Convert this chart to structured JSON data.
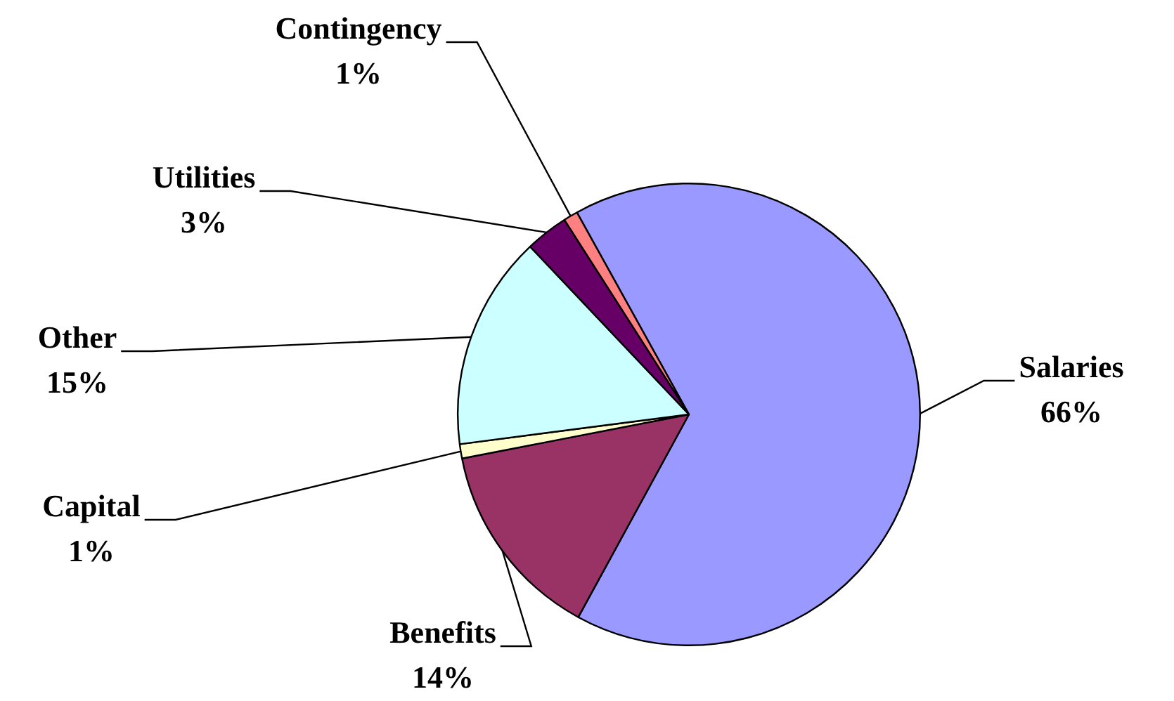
{
  "chart_data": {
    "type": "pie",
    "categories": [
      "Salaries",
      "Benefits",
      "Capital",
      "Other",
      "Utilities",
      "Contingency"
    ],
    "values": [
      66,
      14,
      1,
      15,
      3,
      1
    ],
    "colors": [
      "#9999ff",
      "#993366",
      "#ffffcc",
      "#ccffff",
      "#660066",
      "#ff8080"
    ],
    "value_labels": [
      "66%",
      "14%",
      "1%",
      "15%",
      "3%",
      "1%"
    ],
    "legend": false
  }
}
